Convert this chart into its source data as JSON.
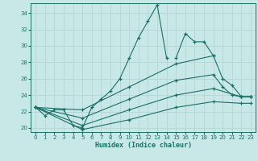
{
  "xlabel": "Humidex (Indice chaleur)",
  "bg_color": "#c8e8e8",
  "line_color": "#1a6e68",
  "grid_color": "#b8d8d8",
  "xlim": [
    -0.5,
    23.5
  ],
  "ylim": [
    19.5,
    35.2
  ],
  "xticks": [
    0,
    1,
    2,
    3,
    4,
    5,
    6,
    7,
    8,
    9,
    10,
    11,
    12,
    13,
    14,
    15,
    16,
    17,
    18,
    19,
    20,
    21,
    22,
    23
  ],
  "yticks": [
    20,
    22,
    24,
    26,
    28,
    30,
    32,
    34
  ],
  "series": [
    {
      "segments": [
        {
          "x": [
            0,
            1,
            2,
            3,
            4,
            5,
            6,
            7,
            8,
            9,
            10,
            11,
            12,
            13,
            14
          ],
          "y": [
            22.5,
            21.5,
            22.2,
            22.2,
            20.3,
            20.0,
            22.5,
            23.5,
            24.5,
            26.0,
            28.5,
            31.0,
            33.0,
            35.0,
            28.5
          ]
        },
        {
          "x": [
            15,
            16,
            17,
            18,
            19
          ],
          "y": [
            28.5,
            31.5,
            30.5,
            30.5,
            28.8
          ]
        }
      ]
    },
    {
      "segments": [
        {
          "x": [
            0,
            5,
            10,
            15,
            19,
            20,
            21,
            22,
            23
          ],
          "y": [
            22.5,
            22.2,
            25.0,
            27.8,
            28.8,
            26.0,
            25.2,
            23.8,
            23.8
          ]
        }
      ]
    },
    {
      "segments": [
        {
          "x": [
            0,
            5,
            10,
            15,
            19,
            20,
            21,
            22,
            23
          ],
          "y": [
            22.5,
            21.2,
            23.5,
            25.8,
            26.5,
            25.0,
            24.0,
            23.8,
            23.8
          ]
        }
      ]
    },
    {
      "segments": [
        {
          "x": [
            0,
            5,
            10,
            15,
            19,
            22,
            23
          ],
          "y": [
            22.5,
            20.3,
            22.2,
            24.0,
            24.8,
            23.8,
            23.8
          ]
        }
      ]
    },
    {
      "segments": [
        {
          "x": [
            0,
            5,
            10,
            15,
            19,
            22,
            23
          ],
          "y": [
            22.5,
            19.8,
            21.0,
            22.5,
            23.2,
            23.0,
            23.0
          ]
        }
      ]
    }
  ]
}
